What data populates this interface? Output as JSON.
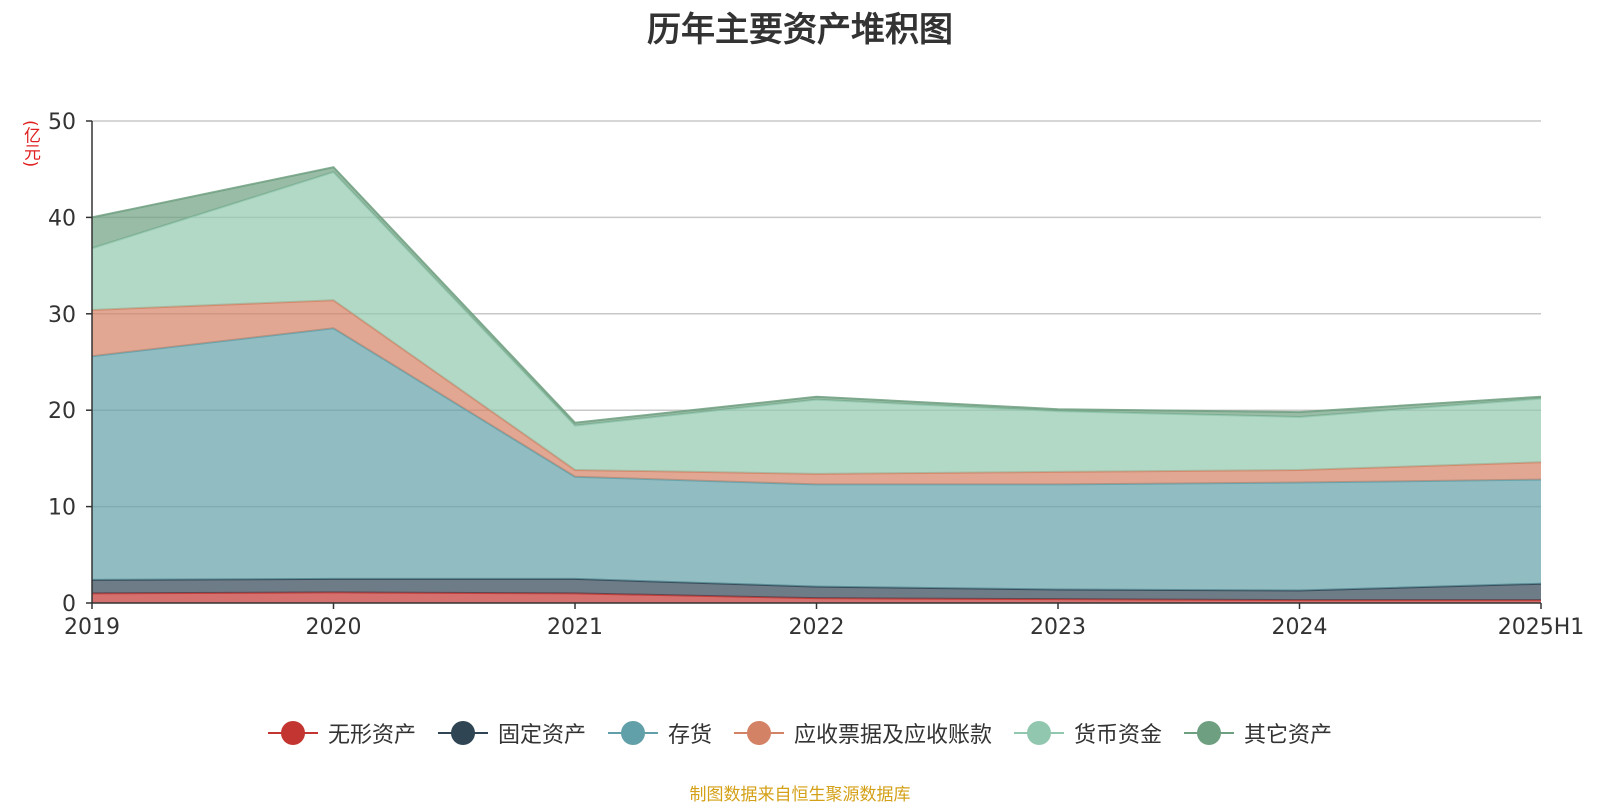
{
  "chart_data": {
    "type": "area",
    "stacked": true,
    "title": "历年主要资产堆积图",
    "unit": "(亿元)",
    "categories": [
      "2019",
      "2020",
      "2021",
      "2022",
      "2023",
      "2024",
      "2025H1"
    ],
    "ylim": [
      0,
      50
    ],
    "yticks": [
      "0",
      "10",
      "20",
      "30",
      "40",
      "50"
    ],
    "grid": true,
    "legend_position": "bottom",
    "series": [
      {
        "name": "无形资产",
        "color": "#c23531",
        "values": [
          1.0,
          1.1,
          1.0,
          0.5,
          0.4,
          0.3,
          0.3
        ]
      },
      {
        "name": "固定资产",
        "color": "#2f4554",
        "values": [
          1.4,
          1.4,
          1.5,
          1.2,
          1.0,
          1.0,
          1.7
        ]
      },
      {
        "name": "存货",
        "color": "#61a0a8",
        "values": [
          23.2,
          26.0,
          10.6,
          10.6,
          10.9,
          11.2,
          10.8
        ]
      },
      {
        "name": "应收票据及应收账款",
        "color": "#d48265",
        "values": [
          4.8,
          2.9,
          0.7,
          1.1,
          1.3,
          1.3,
          1.8
        ]
      },
      {
        "name": "货币资金",
        "color": "#91c7ae",
        "values": [
          6.4,
          13.3,
          4.6,
          7.7,
          6.3,
          5.5,
          6.6
        ]
      },
      {
        "name": "其它资产",
        "color": "#6e9f80",
        "values": [
          3.2,
          0.5,
          0.3,
          0.3,
          0.2,
          0.5,
          0.2
        ]
      }
    ]
  },
  "source_note": "制图数据来自恒生聚源数据库"
}
